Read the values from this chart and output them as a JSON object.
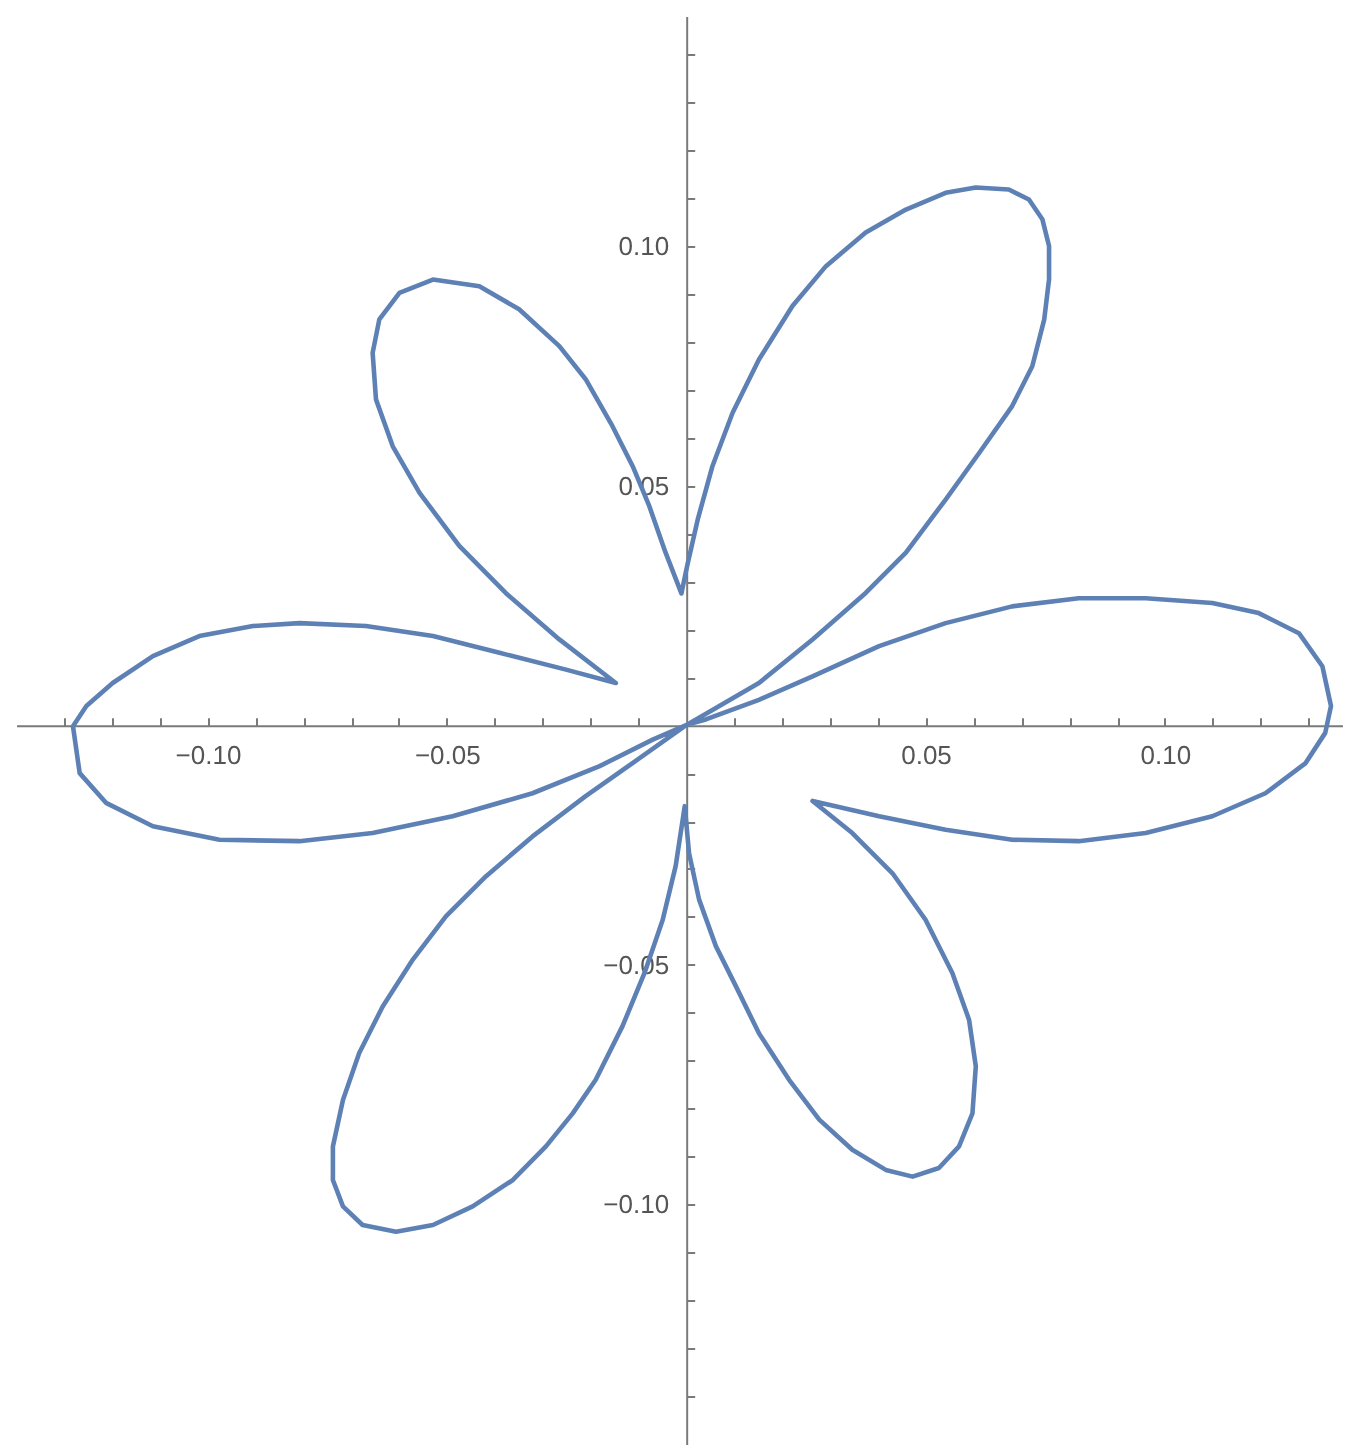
{
  "chart_data": {
    "type": "line",
    "xlim": [
      -0.14,
      0.137
    ],
    "ylim": [
      -0.15,
      0.148
    ],
    "xticks": [
      {
        "value": -0.13,
        "label": null
      },
      {
        "value": -0.12,
        "label": null
      },
      {
        "value": -0.11,
        "label": null
      },
      {
        "value": -0.1,
        "label": "−0.10"
      },
      {
        "value": -0.09,
        "label": null
      },
      {
        "value": -0.08,
        "label": null
      },
      {
        "value": -0.07,
        "label": null
      },
      {
        "value": -0.06,
        "label": null
      },
      {
        "value": -0.05,
        "label": "−0.05"
      },
      {
        "value": -0.04,
        "label": null
      },
      {
        "value": -0.03,
        "label": null
      },
      {
        "value": -0.02,
        "label": null
      },
      {
        "value": -0.01,
        "label": null
      },
      {
        "value": 0.01,
        "label": null
      },
      {
        "value": 0.02,
        "label": null
      },
      {
        "value": 0.03,
        "label": null
      },
      {
        "value": 0.04,
        "label": null
      },
      {
        "value": 0.05,
        "label": "0.05"
      },
      {
        "value": 0.06,
        "label": null
      },
      {
        "value": 0.07,
        "label": null
      },
      {
        "value": 0.08,
        "label": null
      },
      {
        "value": 0.09,
        "label": null
      },
      {
        "value": 0.1,
        "label": "0.10"
      },
      {
        "value": 0.11,
        "label": null
      },
      {
        "value": 0.12,
        "label": null
      },
      {
        "value": 0.13,
        "label": null
      }
    ],
    "yticks": [
      {
        "value": -0.14,
        "label": null
      },
      {
        "value": -0.13,
        "label": null
      },
      {
        "value": -0.12,
        "label": null
      },
      {
        "value": -0.11,
        "label": null
      },
      {
        "value": -0.1,
        "label": "−0.10"
      },
      {
        "value": -0.09,
        "label": null
      },
      {
        "value": -0.08,
        "label": null
      },
      {
        "value": -0.07,
        "label": null
      },
      {
        "value": -0.06,
        "label": null
      },
      {
        "value": -0.05,
        "label": "−0.05"
      },
      {
        "value": -0.04,
        "label": null
      },
      {
        "value": -0.03,
        "label": null
      },
      {
        "value": -0.02,
        "label": null
      },
      {
        "value": -0.01,
        "label": null
      },
      {
        "value": 0.01,
        "label": null
      },
      {
        "value": 0.02,
        "label": null
      },
      {
        "value": 0.03,
        "label": null
      },
      {
        "value": 0.04,
        "label": null
      },
      {
        "value": 0.05,
        "label": "0.05"
      },
      {
        "value": 0.06,
        "label": null
      },
      {
        "value": 0.07,
        "label": null
      },
      {
        "value": 0.08,
        "label": null
      },
      {
        "value": 0.09,
        "label": null
      },
      {
        "value": 0.1,
        "label": "0.10"
      },
      {
        "value": 0.11,
        "label": null
      },
      {
        "value": 0.12,
        "label": null
      },
      {
        "value": 0.13,
        "label": null
      },
      {
        "value": 0.14,
        "label": null
      }
    ],
    "series": [
      {
        "color": "#5e81b5",
        "x": [
          0,
          0.0152,
          0.0264,
          0.0375,
          0.0459,
          0.0542,
          0.0612,
          0.0681,
          0.0723,
          0.0748,
          0.0758,
          0.0758,
          0.0744,
          0.0716,
          0.0674,
          0.0605,
          0.0542,
          0.0459,
          0.0375,
          0.0292,
          0.0222,
          0.0152,
          0.0097,
          0.0055,
          0.0024,
          0.0002,
          -0.001,
          -0.0043,
          -0.0077,
          -0.0112,
          -0.0154,
          -0.021,
          -0.0265,
          -0.0349,
          -0.0432,
          -0.0529,
          -0.0599,
          -0.0641,
          -0.0655,
          -0.0648,
          -0.0613,
          -0.0557,
          -0.0474,
          -0.0377,
          -0.0265,
          -0.0147,
          -0.0251,
          -0.039,
          -0.0529,
          -0.0669,
          -0.0808,
          -0.0905,
          -0.1017,
          -0.1114,
          -0.1198,
          -0.1253,
          -0.1281,
          -0.1267,
          -0.1212,
          -0.1114,
          -0.0975,
          -0.0808,
          -0.0655,
          -0.0488,
          -0.0321,
          -0.0182,
          -0.007,
          0,
          -0.0112,
          -0.021,
          -0.0321,
          -0.0418,
          -0.0502,
          -0.0571,
          -0.0634,
          -0.0683,
          -0.0717,
          -0.0738,
          -0.0738,
          -0.0717,
          -0.0676,
          -0.0606,
          -0.0529,
          -0.0446,
          -0.0362,
          -0.0293,
          -0.0237,
          -0.0189,
          -0.0133,
          -0.0087,
          -0.0049,
          -0.0022,
          -0.0003,
          0.0006,
          0.0027,
          0.0062,
          0.0104,
          0.0152,
          0.0215,
          0.0278,
          0.0347,
          0.0417,
          0.0473,
          0.0528,
          0.057,
          0.0598,
          0.0605,
          0.0591,
          0.0556,
          0.05,
          0.0431,
          0.0347,
          0.0264,
          0.0403,
          0.0542,
          0.0681,
          0.082,
          0.096,
          0.1099,
          0.121,
          0.1294,
          0.1335,
          0.1347,
          0.1329,
          0.128,
          0.1196,
          0.1099,
          0.096,
          0.082,
          0.0681,
          0.0542,
          0.0403,
          0.0264,
          0.0152,
          0.0041,
          0.0012
        ],
        "values": [
          0,
          0.0088,
          0.0179,
          0.0276,
          0.036,
          0.0471,
          0.0568,
          0.0666,
          0.0749,
          0.0847,
          0.093,
          0.1,
          0.1056,
          0.1097,
          0.1118,
          0.1122,
          0.1111,
          0.1076,
          0.1028,
          0.0958,
          0.0875,
          0.0763,
          0.0652,
          0.0541,
          0.0429,
          0.0332,
          0.0275,
          0.036,
          0.0457,
          0.0541,
          0.0624,
          0.0722,
          0.0791,
          0.0868,
          0.0916,
          0.093,
          0.0902,
          0.0847,
          0.0777,
          0.068,
          0.0582,
          0.0485,
          0.0374,
          0.0276,
          0.0179,
          0.0088,
          0.0116,
          0.0151,
          0.0186,
          0.0207,
          0.0213,
          0.0207,
          0.0186,
          0.0144,
          0.0088,
          0.004,
          -0.0002,
          -0.01,
          -0.0162,
          -0.0211,
          -0.0239,
          -0.0242,
          -0.0225,
          -0.019,
          -0.0142,
          -0.0086,
          -0.003,
          0,
          -0.0079,
          -0.0148,
          -0.0232,
          -0.0315,
          -0.0399,
          -0.0489,
          -0.0587,
          -0.0684,
          -0.0782,
          -0.0879,
          -0.0949,
          -0.1004,
          -0.1043,
          -0.1057,
          -0.1043,
          -0.1004,
          -0.0949,
          -0.0879,
          -0.081,
          -0.074,
          -0.0628,
          -0.0517,
          -0.0406,
          -0.0294,
          -0.0169,
          -0.0267,
          -0.0364,
          -0.0461,
          -0.0545,
          -0.0643,
          -0.074,
          -0.0823,
          -0.0886,
          -0.0928,
          -0.0942,
          -0.0924,
          -0.0879,
          -0.081,
          -0.0712,
          -0.0615,
          -0.0517,
          -0.0406,
          -0.0309,
          -0.0225,
          -0.0158,
          -0.019,
          -0.0218,
          -0.0239,
          -0.0242,
          -0.0225,
          -0.019,
          -0.0142,
          -0.0079,
          -0.0016,
          0.004,
          0.0123,
          0.0192,
          0.0234,
          0.0255,
          0.0265,
          0.0265,
          0.0248,
          0.0213,
          0.0165,
          0.0102,
          0.0053,
          0.0012,
          0.0004
        ]
      }
    ]
  }
}
